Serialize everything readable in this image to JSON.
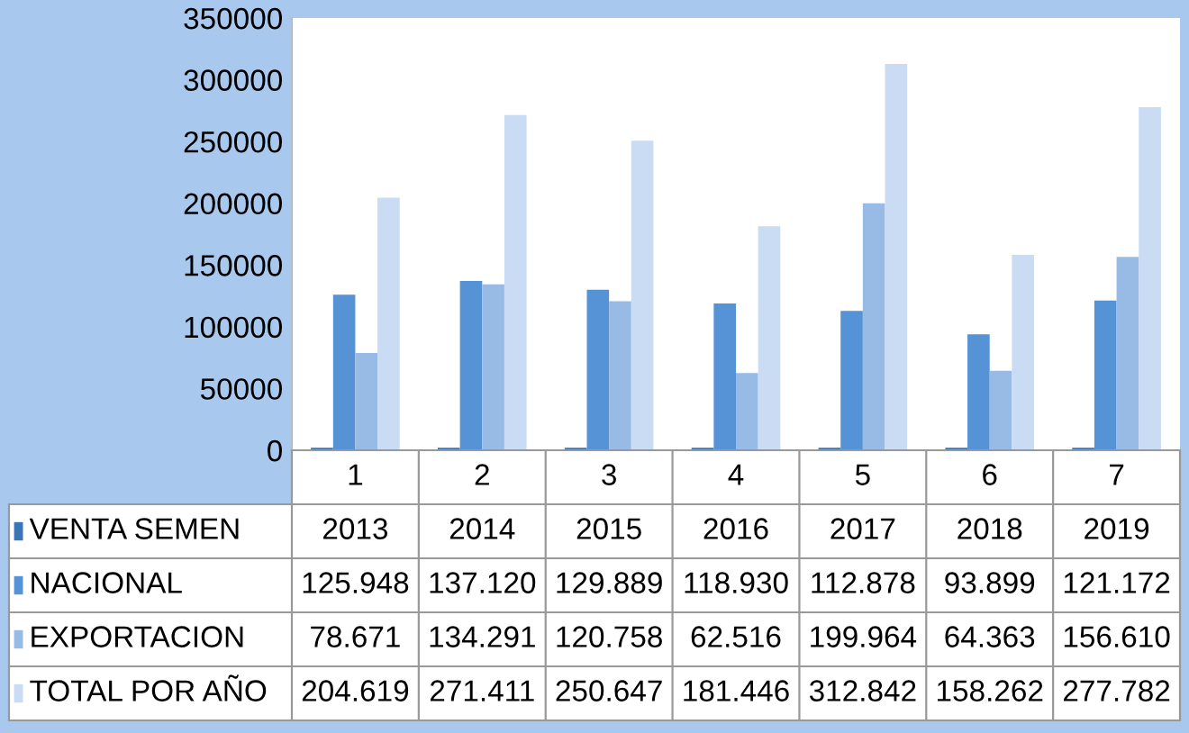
{
  "chart_data": {
    "type": "bar",
    "categories": [
      "1",
      "2",
      "3",
      "4",
      "5",
      "6",
      "7"
    ],
    "ylim": [
      0,
      350000
    ],
    "yticks": [
      0,
      50000,
      100000,
      150000,
      200000,
      250000,
      300000,
      350000
    ],
    "grid": false,
    "legend": "bottom",
    "series": [
      {
        "name": "VENTA SEMEN",
        "color": "#3a75b8",
        "values": [
          2013,
          2014,
          2015,
          2016,
          2017,
          2018,
          2019
        ],
        "value_labels": [
          "2013",
          "2014",
          "2015",
          "2016",
          "2017",
          "2018",
          "2019"
        ]
      },
      {
        "name": "NACIONAL",
        "color": "#5592d6",
        "values": [
          125948,
          137120,
          129889,
          118930,
          112878,
          93899,
          121172
        ],
        "value_labels": [
          "125.948",
          "137.120",
          "129.889",
          "118.930",
          "112.878",
          "93.899",
          "121.172"
        ]
      },
      {
        "name": "EXPORTACION",
        "color": "#98bbe6",
        "values": [
          78671,
          134291,
          120758,
          62516,
          199964,
          64363,
          156610
        ],
        "value_labels": [
          "78.671",
          "134.291",
          "120.758",
          "62.516",
          "199.964",
          "64.363",
          "156.610"
        ]
      },
      {
        "name": "TOTAL POR AÑO",
        "color": "#c9dcf3",
        "values": [
          204619,
          271411,
          250647,
          181446,
          312842,
          158262,
          277782
        ],
        "value_labels": [
          "204.619",
          "271.411",
          "250.647",
          "181.446",
          "312.842",
          "158.262",
          "277.782"
        ]
      }
    ]
  }
}
